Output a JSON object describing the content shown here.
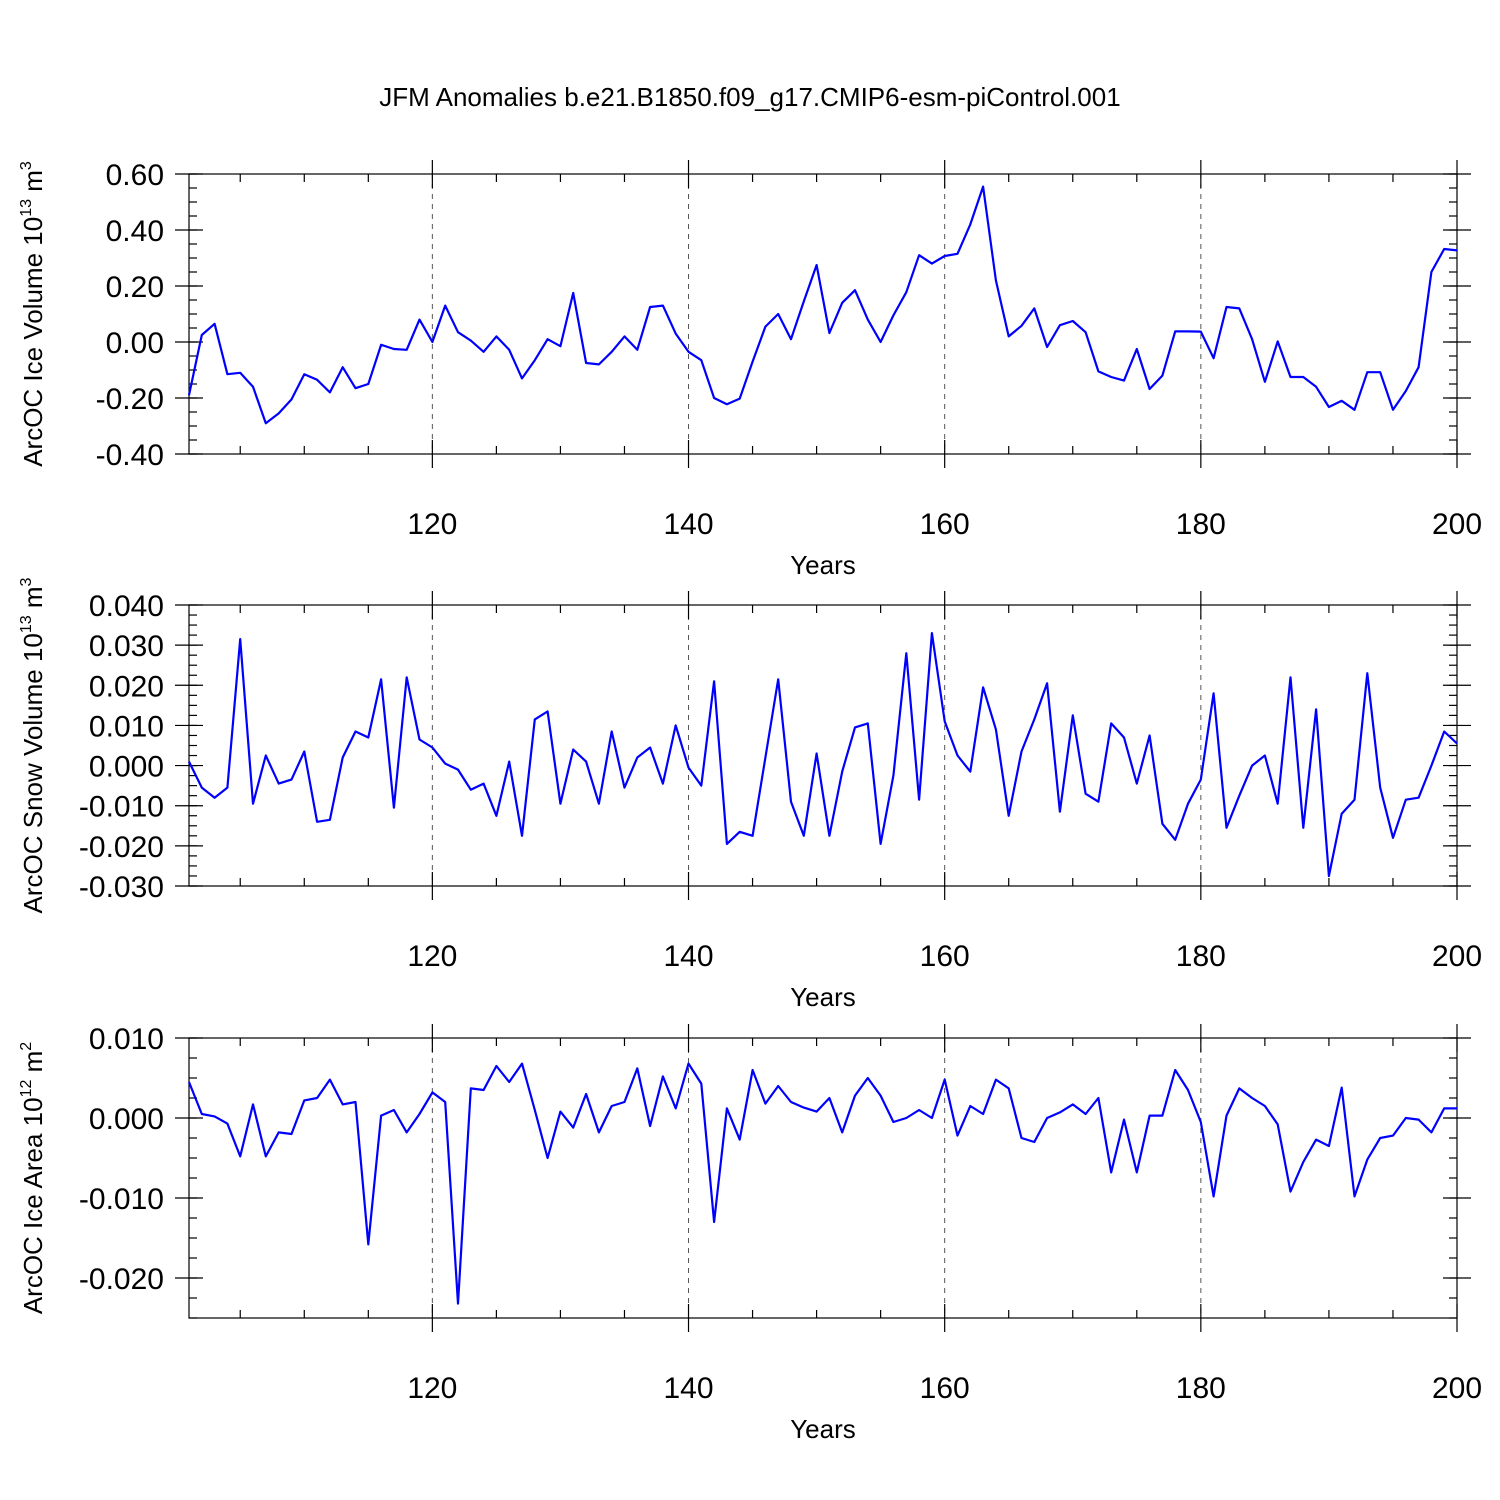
{
  "title": "JFM Anomalies b.e21.B1850.f09_g17.CMIP6-esm-piControl.001",
  "line_color": "#0000ff",
  "chart_data": [
    {
      "type": "line",
      "ylabel": "ArcOC Ice Volume 10",
      "ylabel_exp": "13",
      "ylabel_unit": " m",
      "ylabel_unit_exp": "3",
      "xlabel": "Years",
      "xlim": [
        101,
        200
      ],
      "ylim": [
        -0.4,
        0.6
      ],
      "x_ticks": [
        120,
        140,
        160,
        180,
        200
      ],
      "x_tick_labels": [
        "120",
        "140",
        "160",
        "180",
        "200"
      ],
      "y_ticks": [
        -0.4,
        -0.2,
        0.0,
        0.2,
        0.4,
        0.6
      ],
      "y_tick_labels": [
        "-0.40",
        "-0.20",
        "0.00",
        "0.20",
        "0.40",
        "0.60"
      ],
      "y_minor_step": 0.05,
      "x_start": 101,
      "values": [
        -0.19,
        0.025,
        0.065,
        -0.115,
        -0.11,
        -0.16,
        -0.29,
        -0.255,
        -0.205,
        -0.115,
        -0.135,
        -0.18,
        -0.09,
        -0.165,
        -0.15,
        -0.01,
        -0.025,
        -0.028,
        0.08,
        0.0,
        0.13,
        0.035,
        0.005,
        -0.035,
        0.02,
        -0.028,
        -0.13,
        -0.065,
        0.01,
        -0.015,
        0.175,
        -0.075,
        -0.08,
        -0.035,
        0.02,
        -0.028,
        0.125,
        0.13,
        0.03,
        -0.035,
        -0.065,
        -0.2,
        -0.222,
        -0.202,
        -0.07,
        0.055,
        0.1,
        0.01,
        0.145,
        0.275,
        0.032,
        0.14,
        0.185,
        0.08,
        0.0,
        0.095,
        0.178,
        0.31,
        0.28,
        0.307,
        0.315,
        0.42,
        0.555,
        0.22,
        0.02,
        0.058,
        0.12,
        -0.018,
        0.06,
        0.075,
        0.035,
        -0.105,
        -0.125,
        -0.138,
        -0.025,
        -0.168,
        -0.12,
        0.038,
        0.038,
        0.037,
        -0.058,
        0.125,
        0.12,
        0.01,
        -0.142,
        0.002,
        -0.125,
        -0.125,
        -0.16,
        -0.232,
        -0.21,
        -0.242,
        -0.108,
        -0.108,
        -0.242,
        -0.175,
        -0.09,
        0.25,
        0.332,
        0.327
      ]
    },
    {
      "type": "line",
      "ylabel": "ArcOC Snow Volume 10",
      "ylabel_exp": "13",
      "ylabel_unit": " m",
      "ylabel_unit_exp": "3",
      "xlabel": "Years",
      "xlim": [
        101,
        200
      ],
      "ylim": [
        -0.03,
        0.04
      ],
      "x_ticks": [
        120,
        140,
        160,
        180,
        200
      ],
      "x_tick_labels": [
        "120",
        "140",
        "160",
        "180",
        "200"
      ],
      "y_ticks": [
        -0.03,
        -0.02,
        -0.01,
        0.0,
        0.01,
        0.02,
        0.03,
        0.04
      ],
      "y_tick_labels": [
        "-0.030",
        "-0.020",
        "-0.010",
        "0.000",
        "0.010",
        "0.020",
        "0.030",
        "0.040"
      ],
      "y_minor_step": 0.0025,
      "x_start": 101,
      "values": [
        0.001,
        -0.0055,
        -0.008,
        -0.0055,
        0.0315,
        -0.0095,
        0.0025,
        -0.0045,
        -0.0035,
        0.0035,
        -0.014,
        -0.0135,
        0.002,
        0.0085,
        0.007,
        0.0215,
        -0.0105,
        0.022,
        0.0065,
        0.0045,
        0.0005,
        -0.001,
        -0.006,
        -0.0045,
        -0.0125,
        0.001,
        -0.0175,
        0.0115,
        0.0135,
        -0.0095,
        0.004,
        0.001,
        -0.0095,
        0.0085,
        -0.0055,
        0.002,
        0.0045,
        -0.0045,
        0.01,
        -0.0005,
        -0.005,
        0.021,
        -0.0195,
        -0.0165,
        -0.0175,
        0.002,
        0.0215,
        -0.009,
        -0.0175,
        0.003,
        -0.0175,
        -0.0015,
        0.0095,
        0.0105,
        -0.0195,
        -0.0025,
        0.028,
        -0.0085,
        0.033,
        0.011,
        0.0025,
        -0.0015,
        0.0195,
        0.009,
        -0.0125,
        0.0035,
        0.0115,
        0.0205,
        -0.0115,
        0.0125,
        -0.007,
        -0.009,
        0.0105,
        0.007,
        -0.0045,
        0.0075,
        -0.0145,
        -0.0185,
        -0.0095,
        -0.0035,
        0.018,
        -0.0155,
        -0.0075,
        0.0,
        0.0025,
        -0.0095,
        0.022,
        -0.0155,
        0.014,
        -0.0275,
        -0.012,
        -0.0085,
        0.023,
        -0.0055,
        -0.018,
        -0.0085,
        -0.008,
        0.0,
        0.0085,
        0.0055
      ]
    },
    {
      "type": "line",
      "ylabel": "ArcOC Ice Area 10",
      "ylabel_exp": "12",
      "ylabel_unit": " m",
      "ylabel_unit_exp": "2",
      "xlabel": "Years",
      "xlim": [
        101,
        200
      ],
      "ylim": [
        -0.025,
        0.01
      ],
      "x_ticks": [
        120,
        140,
        160,
        180,
        200
      ],
      "x_tick_labels": [
        "120",
        "140",
        "160",
        "180",
        "200"
      ],
      "y_ticks": [
        -0.02,
        -0.01,
        0.0,
        0.01
      ],
      "y_tick_labels": [
        "-0.020",
        "-0.010",
        "0.000",
        "0.010"
      ],
      "y_minor_step": 0.0025,
      "x_start": 101,
      "values": [
        0.0045,
        0.0005,
        0.0002,
        -0.0007,
        -0.0048,
        0.0017,
        -0.0048,
        -0.0018,
        -0.002,
        0.0022,
        0.0025,
        0.0048,
        0.0017,
        0.002,
        -0.0158,
        0.0003,
        0.001,
        -0.0018,
        0.0005,
        0.0032,
        0.002,
        -0.0232,
        0.0037,
        0.0035,
        0.0065,
        0.0045,
        0.0068,
        0.001,
        -0.005,
        0.0008,
        -0.0012,
        0.003,
        -0.0018,
        0.0015,
        0.002,
        0.0062,
        -0.001,
        0.0052,
        0.0012,
        0.0068,
        0.0043,
        -0.013,
        0.0012,
        -0.0027,
        0.006,
        0.0018,
        0.004,
        0.002,
        0.0013,
        0.0008,
        0.0025,
        -0.0018,
        0.0028,
        0.005,
        0.0028,
        -0.0005,
        0.0,
        0.001,
        0.0,
        0.0048,
        -0.0022,
        0.0015,
        0.0005,
        0.0048,
        0.0037,
        -0.0025,
        -0.003,
        0.0,
        0.0007,
        0.0017,
        0.0005,
        0.0025,
        -0.0068,
        -0.0002,
        -0.0068,
        0.0003,
        0.0003,
        0.006,
        0.0035,
        -0.0005,
        -0.0098,
        0.0003,
        0.0037,
        0.0025,
        0.0015,
        -0.0008,
        -0.0092,
        -0.0055,
        -0.0027,
        -0.0035,
        0.0038,
        -0.0098,
        -0.0052,
        -0.0025,
        -0.0022,
        0.0,
        -0.0002,
        -0.0018,
        0.0012,
        0.0012
      ]
    }
  ]
}
